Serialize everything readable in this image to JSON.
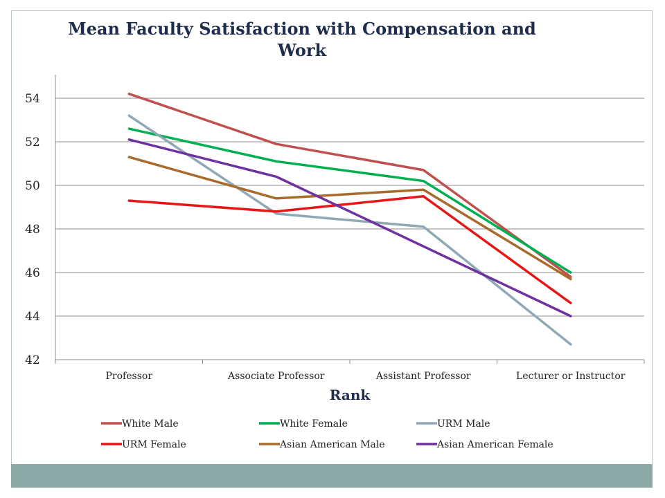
{
  "chart_data": {
    "type": "line",
    "title": "Mean Faculty Satisfaction with Compensation and Work",
    "xlabel": "Rank",
    "ylabel": "",
    "categories": [
      "Professor",
      "Associate Professor",
      "Assistant Professor",
      "Lecturer or Instructor"
    ],
    "ylim": [
      42,
      55
    ],
    "yticks": [
      42,
      44,
      46,
      48,
      50,
      52,
      54
    ],
    "grid": true,
    "legend_position": "bottom",
    "series": [
      {
        "name": "White Male",
        "color": "#c0504d",
        "values": [
          54.2,
          51.9,
          50.7,
          45.8
        ]
      },
      {
        "name": "White Female",
        "color": "#00b050",
        "values": [
          52.6,
          51.1,
          50.2,
          46.0
        ]
      },
      {
        "name": "URM Male",
        "color": "#8ea9b5",
        "values": [
          53.2,
          48.7,
          48.1,
          42.7
        ]
      },
      {
        "name": "URM Female",
        "color": "#e81515",
        "values": [
          49.3,
          48.8,
          49.5,
          44.6
        ]
      },
      {
        "name": "Asian American Male",
        "color": "#a86b2b",
        "values": [
          51.3,
          49.4,
          49.8,
          45.7
        ]
      },
      {
        "name": "Asian American Female",
        "color": "#7030a0",
        "values": [
          52.1,
          50.4,
          47.2,
          44.0
        ]
      }
    ]
  },
  "title_lines": [
    "Mean Faculty Satisfaction with Compensation and",
    "Work"
  ]
}
